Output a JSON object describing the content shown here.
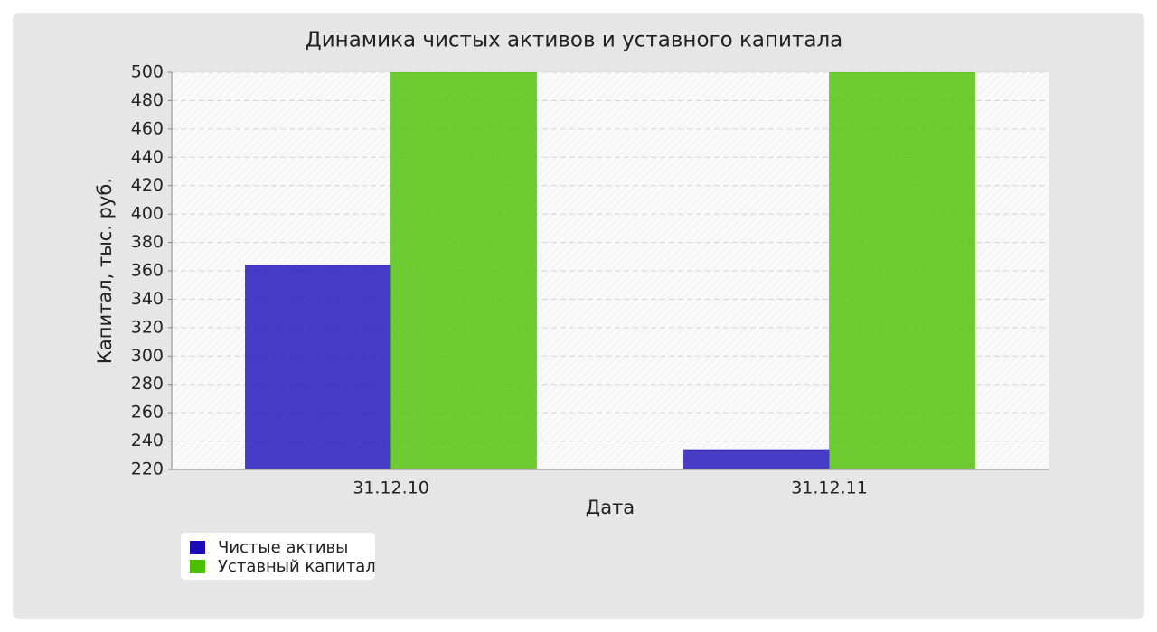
{
  "chart_data": {
    "type": "bar",
    "title": "Динамика чистых активов и уставного капитала",
    "x_label": "Дата",
    "y_label": "Капитал, тыс. руб.",
    "categories": [
      "31.12.10",
      "31.12.11"
    ],
    "series": [
      {
        "name": "Чистые активы",
        "color": "#1a0db8",
        "values": [
          364,
          234
        ]
      },
      {
        "name": "Уставный капитал",
        "color": "#4cbf00",
        "values": [
          500,
          500
        ]
      }
    ],
    "ylim": [
      220,
      500
    ],
    "yticks": [
      220,
      240,
      260,
      280,
      300,
      320,
      340,
      360,
      380,
      400,
      420,
      440,
      460,
      480,
      500
    ],
    "grid": true,
    "legend": "bottom-left"
  }
}
